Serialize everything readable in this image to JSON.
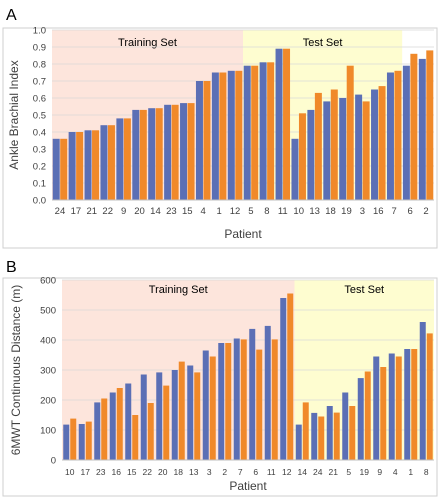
{
  "colors": {
    "series1": "#5b6fb5",
    "series2": "#f0892a",
    "training_bg": "#fde5dc",
    "test_bg": "#fefdd0",
    "grid": "#d9d9d9",
    "frame": "#cfcfcf"
  },
  "chart_data": [
    {
      "panel": "A",
      "type": "bar",
      "ylabel": "Ankle Brachial Index",
      "xlabel": "Patient",
      "ylim": [
        0,
        1.0
      ],
      "yticks": [
        "0.0",
        "0.1",
        "0.2",
        "0.3",
        "0.4",
        "0.5",
        "0.6",
        "0.7",
        "0.8",
        "0.9",
        "1.0"
      ],
      "grid": true,
      "regions": [
        {
          "label": "Training Set",
          "start": 0,
          "end": 12
        },
        {
          "label": "Test Set",
          "start": 12,
          "end": 22
        }
      ],
      "categories": [
        "24",
        "17",
        "21",
        "22",
        "9",
        "20",
        "14",
        "23",
        "15",
        "4",
        "1",
        "12",
        "5",
        "8",
        "11",
        "10",
        "13",
        "18",
        "19",
        "3",
        "16",
        "7",
        "6",
        "2"
      ],
      "series": [
        {
          "values": [
            0.36,
            0.4,
            0.41,
            0.44,
            0.48,
            0.53,
            0.54,
            0.56,
            0.57,
            0.7,
            0.75,
            0.76,
            0.79,
            0.81,
            0.89,
            0.36,
            0.53,
            0.58,
            0.6,
            0.62,
            0.65,
            0.75,
            0.79,
            0.83
          ]
        },
        {
          "values": [
            0.36,
            0.4,
            0.41,
            0.44,
            0.48,
            0.53,
            0.54,
            0.56,
            0.57,
            0.7,
            0.75,
            0.76,
            0.79,
            0.81,
            0.89,
            0.51,
            0.63,
            0.65,
            0.79,
            0.58,
            0.67,
            0.76,
            0.86,
            0.88
          ]
        }
      ]
    },
    {
      "panel": "B",
      "type": "bar",
      "ylabel": "6MWT Continuous Distance (m)",
      "xlabel": "Patient",
      "ylim": [
        0,
        600
      ],
      "yticks": [
        "0",
        "100",
        "200",
        "300",
        "400",
        "500",
        "600"
      ],
      "grid": true,
      "regions": [
        {
          "label": "Training Set",
          "start": 0,
          "end": 15
        },
        {
          "label": "Test Set",
          "start": 15,
          "end": 24
        }
      ],
      "categories": [
        "10",
        "17",
        "23",
        "16",
        "15",
        "22",
        "20",
        "18",
        "13",
        "3",
        "2",
        "7",
        "6",
        "11",
        "12",
        "14",
        "24",
        "21",
        "5",
        "19",
        "9",
        "4",
        "1",
        "8"
      ],
      "series": [
        {
          "values": [
            118,
            120,
            192,
            225,
            255,
            285,
            292,
            300,
            315,
            365,
            390,
            405,
            437,
            447,
            540,
            118,
            157,
            180,
            225,
            273,
            345,
            355,
            370,
            460
          ]
        },
        {
          "values": [
            138,
            128,
            205,
            240,
            150,
            190,
            248,
            328,
            292,
            345,
            390,
            402,
            368,
            402,
            555,
            192,
            145,
            158,
            180,
            295,
            310,
            345,
            370,
            422
          ]
        }
      ]
    }
  ]
}
